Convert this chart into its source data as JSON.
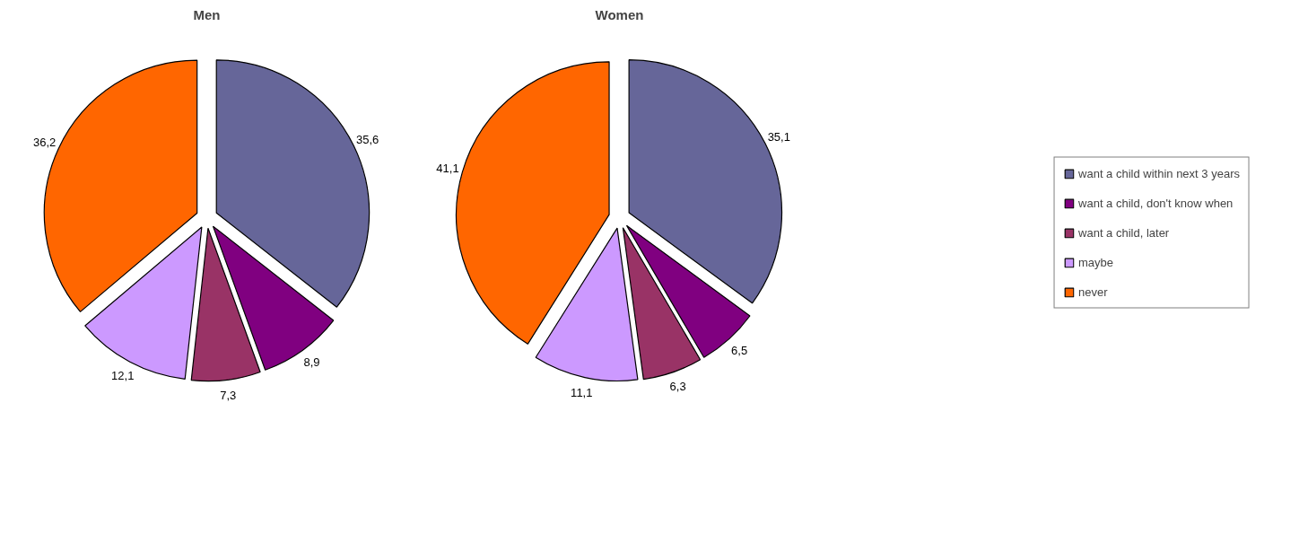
{
  "chart_data": [
    {
      "type": "pie",
      "title": "Men",
      "values": [
        35.6,
        8.9,
        7.3,
        12.1,
        36.2
      ],
      "value_labels": [
        "35,6",
        "8,9",
        "7,3",
        "12,1",
        "36,2"
      ],
      "colors": [
        "#666699",
        "#800080",
        "#993366",
        "#cc99ff",
        "#ff6600"
      ]
    },
    {
      "type": "pie",
      "title": "Women",
      "categories": [
        "want a child within next 3 years",
        "want a child, don't know when",
        "want a child, later",
        "maybe",
        "never"
      ],
      "values": [
        35.1,
        6.5,
        6.3,
        11.1,
        41.1
      ],
      "value_labels": [
        "35,1",
        "6,5",
        "6,3",
        "11,1",
        "41,1"
      ],
      "colors": [
        "#666699",
        "#800080",
        "#993366",
        "#cc99ff",
        "#ff6600"
      ],
      "legend": "right"
    }
  ]
}
